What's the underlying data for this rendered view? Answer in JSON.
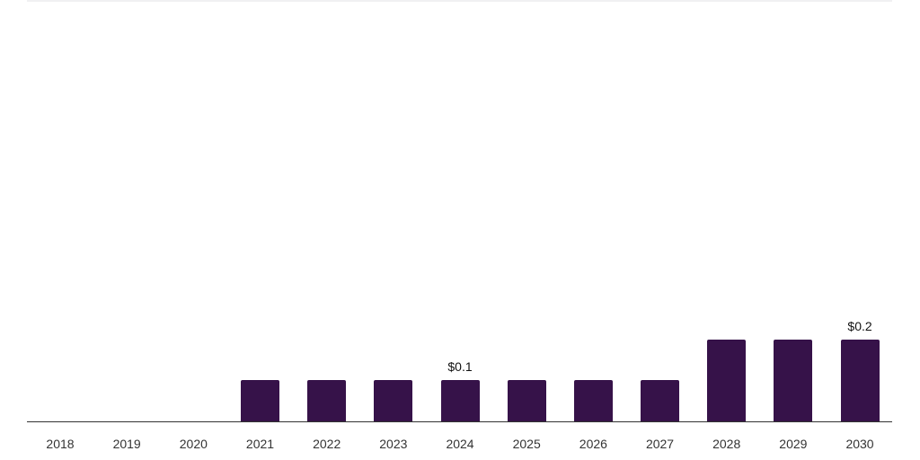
{
  "chart_data": {
    "type": "bar",
    "title": "",
    "xlabel": "",
    "ylabel": "",
    "categories": [
      "2018",
      "2019",
      "2020",
      "2021",
      "2022",
      "2023",
      "2024",
      "2025",
      "2026",
      "2027",
      "2028",
      "2029",
      "2030"
    ],
    "values": [
      0,
      0,
      0,
      0.1,
      0.1,
      0.1,
      0.1,
      0.1,
      0.1,
      0.1,
      0.2,
      0.2,
      0.2
    ],
    "data_labels": [
      {
        "category": "2024",
        "text": "$0.1"
      },
      {
        "category": "2030",
        "text": "$0.2"
      }
    ],
    "ylim": [
      0,
      1.0
    ],
    "grid": false,
    "legend": null,
    "bar_color": "#361249"
  }
}
